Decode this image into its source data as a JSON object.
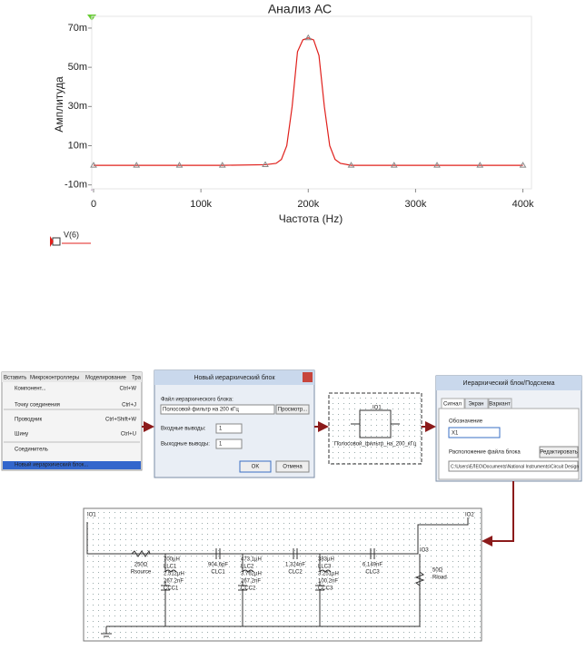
{
  "chart_data": {
    "type": "line",
    "title": "Анализ АС",
    "x_label": "Частота (Hz)",
    "y_label": "Амплитуда",
    "xlim": [
      0,
      408000
    ],
    "ylim": [
      -0.012,
      0.076
    ],
    "xticks": [
      0,
      {
        "value": 100000,
        "label": "100k"
      },
      {
        "value": 200000,
        "label": "200k"
      },
      {
        "value": 300000,
        "label": "300k"
      },
      {
        "value": 400000,
        "label": "400k"
      }
    ],
    "yticks": [
      {
        "value": -0.01,
        "label": "-10m"
      },
      {
        "value": 0.01,
        "label": "10m"
      },
      {
        "value": 0.03,
        "label": "30m"
      },
      {
        "value": 0.05,
        "label": "50m"
      },
      {
        "value": 0.07,
        "label": "70m"
      }
    ],
    "series": [
      {
        "name": "V(6)",
        "color": "#e0201c",
        "x": [
          0,
          40000,
          80000,
          120000,
          160000,
          170000,
          175000,
          180000,
          185000,
          190000,
          195000,
          200000,
          205000,
          210000,
          215000,
          220000,
          225000,
          230000,
          240000,
          280000,
          320000,
          360000,
          400000
        ],
        "values": [
          0,
          0,
          0,
          0,
          0.0003,
          0.001,
          0.003,
          0.01,
          0.03,
          0.058,
          0.064,
          0.065,
          0.064,
          0.056,
          0.03,
          0.01,
          0.003,
          0.001,
          0,
          0,
          0,
          0,
          0
        ]
      }
    ]
  },
  "menu": {
    "tabs": [
      "Вставить",
      "Микроконтроллеры",
      "Моделирование",
      "Тра"
    ],
    "items": [
      {
        "label": "Компонент...",
        "shortcut": "Ctrl+W"
      },
      {
        "label": "Точку соединения",
        "shortcut": "Ctrl+J"
      },
      {
        "label": "Проводник",
        "shortcut": "Ctrl+Shift+W"
      },
      {
        "label": "Шину",
        "shortcut": "Ctrl+U"
      },
      {
        "label": "Соединитель"
      },
      {
        "label": "Новый иерархический блок..."
      }
    ]
  },
  "dialog1": {
    "title": "Новый иерархический блок",
    "file_label": "Файл иерархического блока:",
    "file": "Полосовой фильтр на 200 кГц",
    "browse": "Просмотр...",
    "inputs_label": "Входные выводы:",
    "inputs": "1",
    "outputs_label": "Выходные выводы:",
    "outputs": "1",
    "ok": "OK",
    "cancel": "Отмена"
  },
  "block": {
    "pin": "IO1",
    "label": "Полосовой_фильтр_на_200_кГц"
  },
  "dialog2": {
    "title": "Иерархический блок/Подсхема",
    "tabs": [
      "Сигнал",
      "Экран",
      "Вариант"
    ],
    "ref_label": "Обозначение",
    "ref": "X1",
    "loc_label": "Расположение файла блока",
    "edit": "Редактировать",
    "path": "C:\\Users\\ЕЛЕО\\Documents\\National Instruments\\Circuit Design"
  },
  "schematic": {
    "io_in": "IO1",
    "io_out": "IO2",
    "io_mid": "IO3",
    "parts": [
      [
        "250Ω",
        "Rsource"
      ],
      [
        "700µH",
        "LLC1",
        "2.512µH",
        "267.2nF",
        "CCC1"
      ],
      [
        "904.6pF",
        "CLC1"
      ],
      [
        "473.1µH",
        "LLC2",
        "3.762µH",
        "267.2nF",
        "CCC2"
      ],
      [
        "1.324nF",
        "CLC2"
      ],
      [
        "383µH",
        "LLC3",
        "3.251µH",
        "100.2nF",
        "CCC3"
      ],
      [
        "6.149nF",
        "CLC3"
      ],
      [
        "50Ω",
        "Rload"
      ]
    ]
  }
}
